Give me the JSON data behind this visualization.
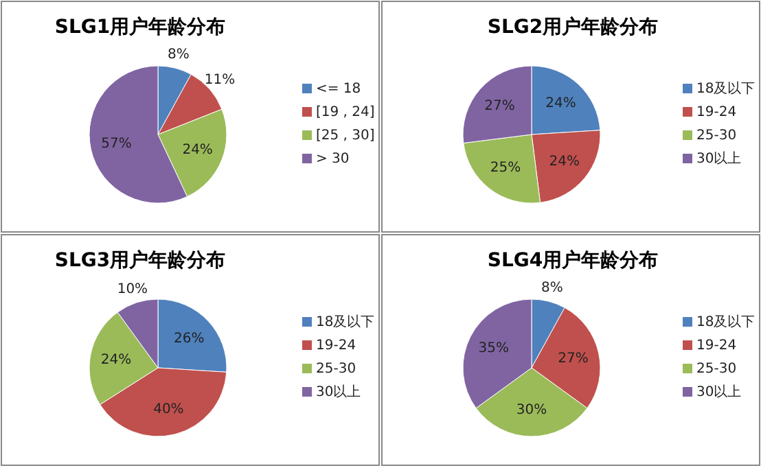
{
  "chart_data": [
    {
      "type": "pie",
      "title": "SLG1用户年龄分布",
      "categories": [
        "<= 18",
        "[19 , 24]",
        "[25 , 30]",
        "> 30"
      ],
      "values": [
        8,
        11,
        24,
        57
      ],
      "colors": [
        "#4f81bd",
        "#c0504d",
        "#9bbb59",
        "#8064a2"
      ],
      "value_labels": [
        "8%",
        "11%",
        "24%",
        "57%"
      ],
      "legend": "right"
    },
    {
      "type": "pie",
      "title": "SLG2用户年龄分布",
      "categories": [
        "18及以下",
        "19-24",
        "25-30",
        "30以上"
      ],
      "values": [
        24,
        24,
        25,
        27
      ],
      "colors": [
        "#4f81bd",
        "#c0504d",
        "#9bbb59",
        "#8064a2"
      ],
      "value_labels": [
        "24%",
        "24%",
        "25%",
        "27%"
      ],
      "legend": "right"
    },
    {
      "type": "pie",
      "title": "SLG3用户年龄分布",
      "categories": [
        "18及以下",
        "19-24",
        "25-30",
        "30以上"
      ],
      "values": [
        26,
        40,
        24,
        10
      ],
      "colors": [
        "#4f81bd",
        "#c0504d",
        "#9bbb59",
        "#8064a2"
      ],
      "value_labels": [
        "26%",
        "40%",
        "24%",
        "10%"
      ],
      "legend": "right"
    },
    {
      "type": "pie",
      "title": "SLG4用户年龄分布",
      "categories": [
        "18及以下",
        "19-24",
        "25-30",
        "30以上"
      ],
      "values": [
        8,
        27,
        30,
        35
      ],
      "colors": [
        "#4f81bd",
        "#c0504d",
        "#9bbb59",
        "#8064a2"
      ],
      "value_labels": [
        "8%",
        "27%",
        "30%",
        "35%"
      ],
      "legend": "right"
    }
  ]
}
